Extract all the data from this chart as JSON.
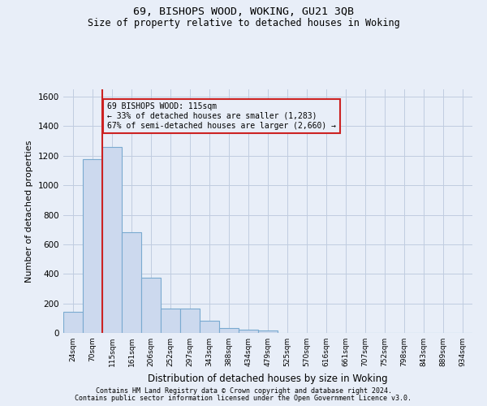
{
  "title": "69, BISHOPS WOOD, WOKING, GU21 3QB",
  "subtitle": "Size of property relative to detached houses in Woking",
  "xlabel": "Distribution of detached houses by size in Woking",
  "ylabel": "Number of detached properties",
  "bar_labels": [
    "24sqm",
    "70sqm",
    "115sqm",
    "161sqm",
    "206sqm",
    "252sqm",
    "297sqm",
    "343sqm",
    "388sqm",
    "434sqm",
    "479sqm",
    "525sqm",
    "570sqm",
    "616sqm",
    "661sqm",
    "707sqm",
    "752sqm",
    "798sqm",
    "843sqm",
    "889sqm",
    "934sqm"
  ],
  "bar_values": [
    145,
    1175,
    1260,
    680,
    375,
    165,
    165,
    80,
    35,
    20,
    15,
    0,
    0,
    0,
    0,
    0,
    0,
    0,
    0,
    0,
    0
  ],
  "bar_color": "#ccd9ee",
  "bar_edgecolor": "#7aaad0",
  "vline_color": "#cc2222",
  "annotation_line1": "69 BISHOPS WOOD: 115sqm",
  "annotation_line2": "← 33% of detached houses are smaller (1,283)",
  "annotation_line3": "67% of semi-detached houses are larger (2,660) →",
  "annotation_box_color": "#cc2222",
  "background_color": "#e8eef8",
  "grid_color": "#d0d8e8",
  "ylim": [
    0,
    1650
  ],
  "yticks": [
    0,
    200,
    400,
    600,
    800,
    1000,
    1200,
    1400,
    1600
  ],
  "footer_line1": "Contains HM Land Registry data © Crown copyright and database right 2024.",
  "footer_line2": "Contains public sector information licensed under the Open Government Licence v3.0."
}
